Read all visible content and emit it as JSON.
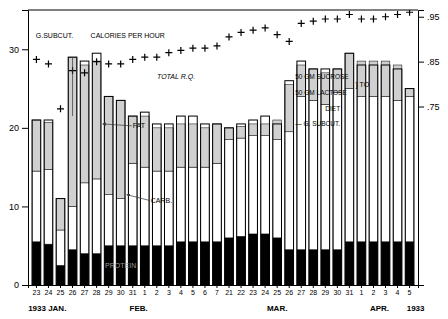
{
  "chart_data": {
    "type": "bar",
    "stacked": true,
    "categories": [
      "23",
      "24",
      "25",
      "26",
      "27",
      "28",
      "29",
      "30",
      "31",
      "1",
      "2",
      "3",
      "4",
      "5",
      "6",
      "7",
      "21",
      "22",
      "23",
      "24",
      "25",
      "26",
      "27",
      "28",
      "29",
      "30",
      "31",
      "1",
      "2",
      "3",
      "4",
      "5"
    ],
    "ylim": [
      0,
      35
    ],
    "yticks": [
      0,
      10,
      20,
      30
    ],
    "y2lim": [
      0.3525,
      0.965
    ],
    "y2ticks": [
      {
        "value": 0.75,
        "label": ".75"
      },
      {
        "value": 0.85,
        "label": ".85"
      },
      {
        "value": 0.95,
        "label": ".95"
      }
    ],
    "series": [
      {
        "name": "PROTEIN",
        "type": "bar",
        "color": "#000000",
        "values": [
          5.5,
          5.2,
          2.5,
          4.5,
          4.0,
          4.0,
          5.0,
          5.0,
          5.0,
          5.0,
          5.0,
          5.0,
          5.5,
          5.5,
          5.5,
          5.5,
          6.0,
          6.2,
          6.5,
          6.5,
          6.0,
          4.5,
          4.5,
          4.5,
          4.5,
          4.5,
          5.5,
          5.5,
          5.5,
          5.5,
          5.5,
          5.5
        ]
      },
      {
        "name": "CARB.",
        "type": "bar",
        "color": "#ffffff",
        "values": [
          9.0,
          9.5,
          4.5,
          5.5,
          9.0,
          9.5,
          6.5,
          6.0,
          10.5,
          10.0,
          9.5,
          9.5,
          9.5,
          9.5,
          9.5,
          10.0,
          12.5,
          12.5,
          12.5,
          12.5,
          12.5,
          15.0,
          19.5,
          19.0,
          18.5,
          20.0,
          19.5,
          18.5,
          18.5,
          18.5,
          18.0,
          18.5
        ]
      },
      {
        "name": "FAT",
        "type": "bar",
        "color": "#d0d0d0",
        "values": [
          6.5,
          6.0,
          4.0,
          19.0,
          15.0,
          15.0,
          12.5,
          12.5,
          6.0,
          6.5,
          5.5,
          5.5,
          5.5,
          5.5,
          5.0,
          5.0,
          1.5,
          1.5,
          1.5,
          1.5,
          2.5,
          6.0,
          4.0,
          4.0,
          4.0,
          3.0,
          4.5,
          4.5,
          4.5,
          4.5,
          4.5,
          1.0
        ]
      },
      {
        "name": "G.SUBCUT.",
        "type": "outline",
        "color": "#000000",
        "values": [
          21.0,
          21.0,
          11.0,
          29.0,
          28.5,
          29.5,
          24.0,
          23.5,
          21.5,
          22.0,
          20.5,
          20.5,
          21.5,
          21.5,
          20.5,
          20.5,
          20.0,
          20.5,
          21.0,
          21.5,
          20.5,
          26.0,
          28.5,
          27.5,
          27.5,
          27.5,
          29.5,
          28.0,
          28.0,
          28.0,
          27.5,
          25.0
        ]
      },
      {
        "name": "TOTAL R.Q.",
        "type": "scatter",
        "marker": "+",
        "color": "#000000",
        "axis": "y2",
        "values": [
          0.855,
          0.845,
          0.745,
          0.83,
          0.825,
          0.85,
          0.845,
          0.845,
          0.855,
          0.86,
          0.86,
          0.87,
          0.875,
          0.88,
          0.88,
          0.885,
          0.905,
          0.915,
          0.92,
          0.925,
          0.91,
          0.895,
          0.935,
          0.94,
          0.945,
          0.945,
          0.955,
          0.945,
          0.945,
          0.95,
          0.955,
          0.96
        ]
      }
    ],
    "annotations": [
      "CALORIES PER HOUR",
      "50 GM SUCROSE",
      "50 GM LACTOSE",
      "} TO",
      "DIET",
      "— G. SUBCUT.",
      "1933 JAN.",
      "FEB.",
      "MAR.",
      "APR.",
      "1933"
    ]
  }
}
